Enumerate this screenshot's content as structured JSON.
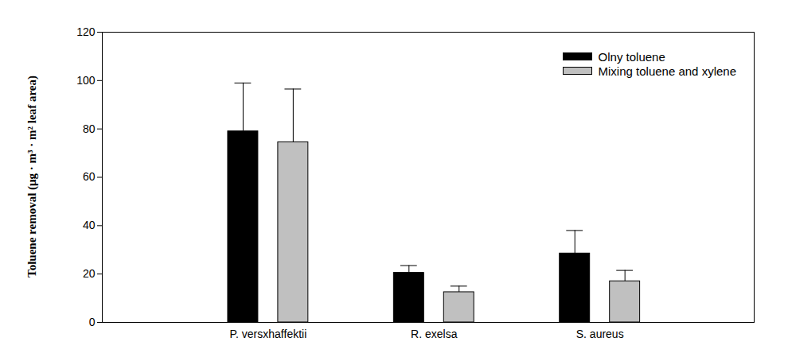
{
  "chart_data": {
    "type": "bar",
    "ylabel": "Toluene removal (μg · m³ · m² leaf area)",
    "categories": [
      "P. versxhaffektii",
      "R. exelsa",
      "S. aureus"
    ],
    "series": [
      {
        "name": "Olny toluene",
        "color": "#000000",
        "values": [
          79,
          20.5,
          28.5
        ],
        "errors": [
          20,
          3,
          9.5
        ]
      },
      {
        "name": "Mixing toluene and xylene",
        "color": "#c0c0c0",
        "values": [
          74.5,
          12.5,
          17
        ],
        "errors": [
          22,
          2.5,
          4.5
        ]
      }
    ],
    "ylim": [
      0,
      120
    ],
    "yticks": [
      0,
      20,
      40,
      60,
      80,
      100,
      120
    ],
    "grid": false,
    "legend": "upper right"
  }
}
